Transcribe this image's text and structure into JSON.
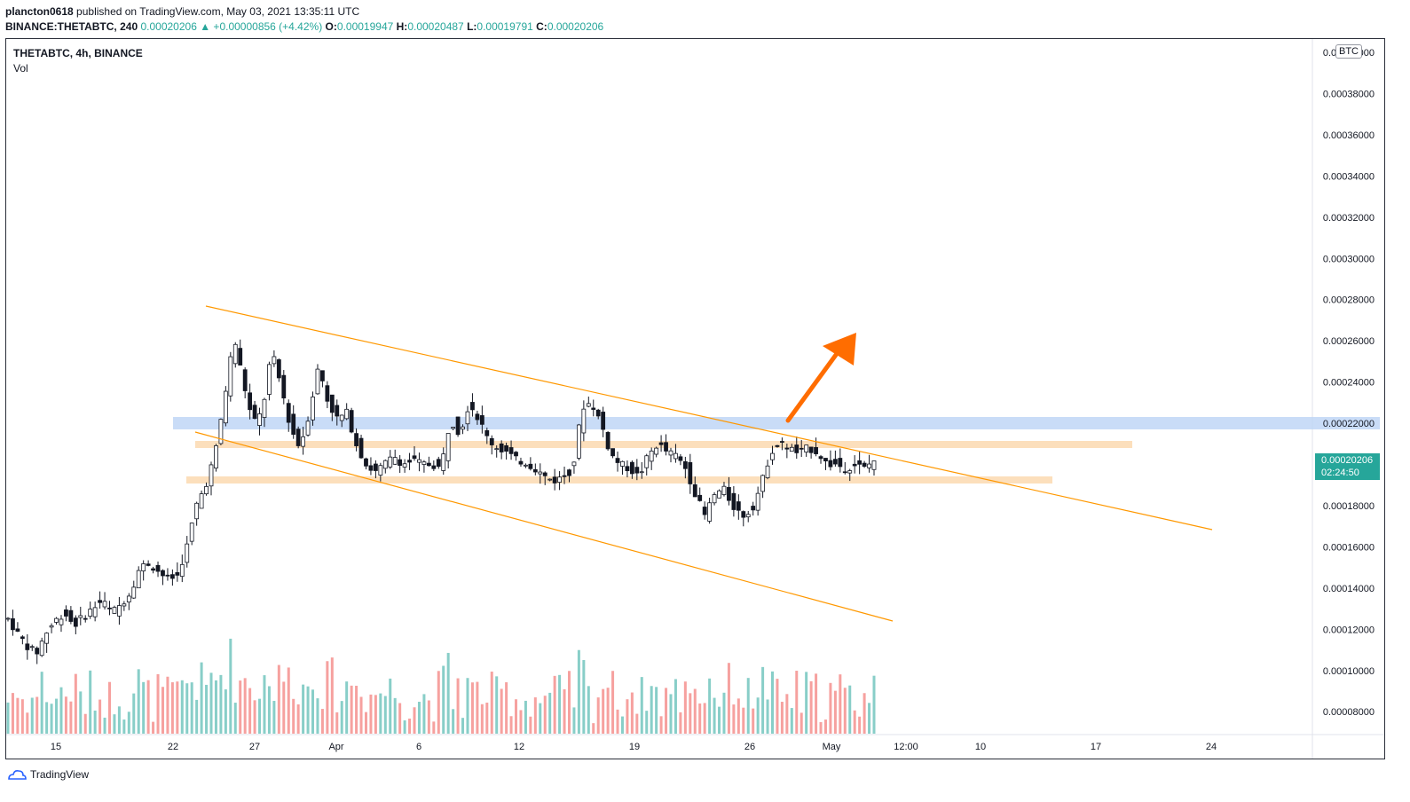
{
  "header": {
    "author": "plancton0618",
    "published_text": "published on TradingView.com, May 03, 2021 13:35:11 UTC",
    "symbol_full": "BINANCE:THETABTC, 240",
    "price": "0.00020206",
    "change": "▲ +0.00000856 (+4.42%)",
    "o_label": "O:",
    "o_value": "0.00019947",
    "h_label": "H:",
    "h_value": "0.00020487",
    "l_label": "L:",
    "l_value": "0.00019791",
    "c_label": "C:",
    "c_value": "0.00020206"
  },
  "legend": {
    "symbol": "THETABTC, 4h, BINANCE",
    "volume": "Vol"
  },
  "currency": "BTC",
  "last_price": {
    "value": "0.00020206",
    "countdown": "02:24:50"
  },
  "footer": {
    "brand": "TradingView"
  },
  "colors": {
    "up": "#26a69a",
    "down": "#ef5350",
    "trendline": "#ff9800",
    "zone_blue": "#bcd3f5",
    "zone_orange": "#fbd9b0",
    "arrow": "#ff6d00"
  },
  "chart_data": {
    "type": "candlestick",
    "y_axis_labels": [
      "0.00040000",
      "0.00038000",
      "0.00036000",
      "0.00034000",
      "0.00032000",
      "0.00030000",
      "0.00028000",
      "0.00026000",
      "0.00024000",
      "0.00022000",
      "0.00020000",
      "0.00018000",
      "0.00016000",
      "0.00014000",
      "0.00012000",
      "0.00010000",
      "0.00008000"
    ],
    "x_axis_labels": [
      "15",
      "22",
      "27",
      "Apr",
      "6",
      "12",
      "19",
      "26",
      "May",
      "12:00",
      "10",
      "17",
      "24"
    ],
    "price_path": [
      0.000125,
      0.000118,
      0.000112,
      0.000108,
      0.000118,
      0.000124,
      0.000128,
      0.000122,
      0.000126,
      0.00013,
      0.000134,
      0.000128,
      0.000132,
      0.000138,
      0.00015,
      0.000152,
      0.000148,
      0.000144,
      0.000146,
      0.00016,
      0.00018,
      0.00019,
      0.000205,
      0.000232,
      0.000262,
      0.00024,
      0.00022,
      0.000225,
      0.000255,
      0.000238,
      0.000218,
      0.000208,
      0.000225,
      0.000248,
      0.00023,
      0.000222,
      0.000225,
      0.00021,
      0.0002,
      0.000196,
      0.0002,
      0.000204,
      0.0002,
      0.000202,
      0.0002,
      0.0002,
      0.000198,
      0.000222,
      0.000215,
      0.00023,
      0.000222,
      0.000212,
      0.000208,
      0.000206,
      0.000202,
      0.000201,
      0.000198,
      0.000194,
      0.000192,
      0.000194,
      0.000198,
      0.000228,
      0.00023,
      0.00022,
      0.000205,
      0.0002,
      0.000198,
      0.000194,
      0.000204,
      0.00021,
      0.000206,
      0.000204,
      0.000198,
      0.000186,
      0.000175,
      0.000185,
      0.000188,
      0.00018,
      0.000175,
      0.000178,
      0.00019,
      0.000206,
      0.00021,
      0.000208,
      0.000205,
      0.000208,
      0.000206,
      0.0002,
      0.0002,
      0.000198,
      0.0002,
      0.000198,
      0.000202
    ]
  }
}
